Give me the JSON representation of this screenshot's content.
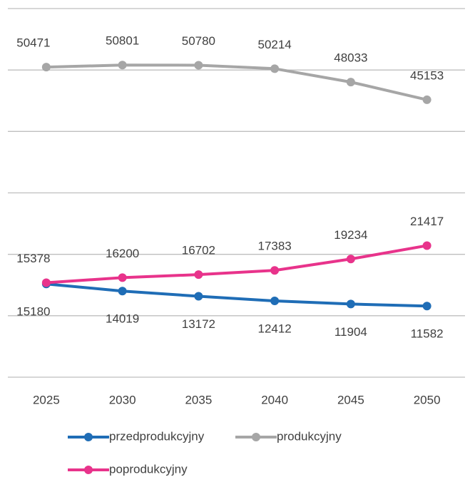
{
  "chart_data": {
    "type": "line",
    "categories": [
      "2025",
      "2030",
      "2035",
      "2040",
      "2045",
      "2050"
    ],
    "series": [
      {
        "name": "przedprodukcyjny",
        "color": "#1f6db6",
        "values": [
          15180,
          14019,
          13172,
          12412,
          11904,
          11582
        ]
      },
      {
        "name": "produkcyjny",
        "color": "#a6a6a6",
        "values": [
          50471,
          50801,
          50780,
          50214,
          48033,
          45153
        ]
      },
      {
        "name": "poprodukcyjny",
        "color": "#e8338b",
        "values": [
          15378,
          16200,
          16702,
          17383,
          19234,
          21417
        ]
      }
    ],
    "ylim": [
      0,
      60000
    ],
    "yticks": [
      0,
      10000,
      20000,
      30000,
      40000,
      50000,
      60000
    ],
    "grid": true
  }
}
